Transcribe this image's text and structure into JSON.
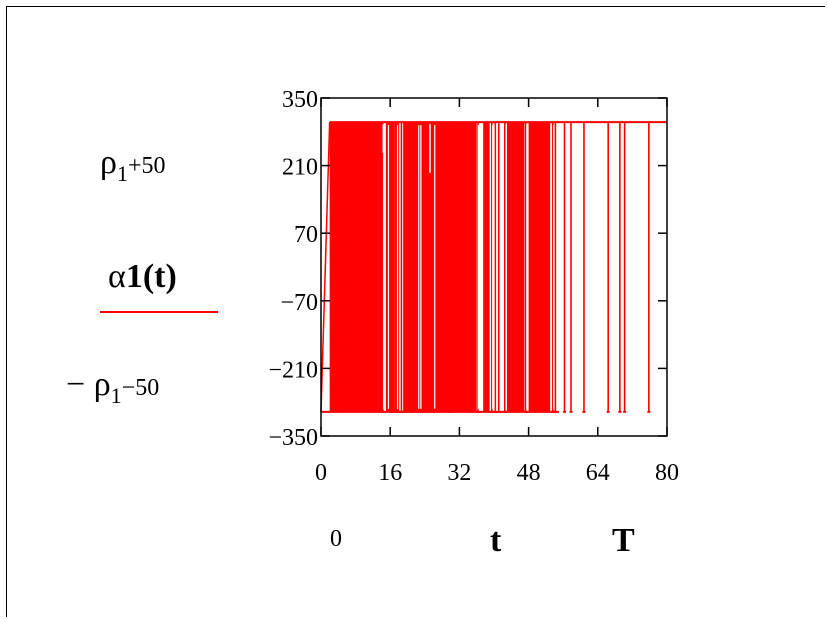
{
  "upper_expr": {
    "main": "ρ",
    "sub": "1",
    "suffix": "+50"
  },
  "lower_expr": {
    "prefix": "− ",
    "main": "ρ",
    "sub": "1",
    "suffix": "−50"
  },
  "legend": {
    "alpha": "α",
    "text": "1(t)"
  },
  "x_limits": {
    "lower": "0",
    "variable": "t",
    "upper": "T"
  },
  "colors": {
    "trace": "#ff0000",
    "axis": "#000000",
    "background": "#ffffff"
  },
  "chart_data": {
    "type": "line",
    "x_ticks": [
      "0",
      "16",
      "32",
      "48",
      "64",
      "80"
    ],
    "y_ticks": [
      "350",
      "210",
      "70",
      "−70",
      "−210",
      "−350"
    ],
    "xlim": [
      0,
      80
    ],
    "ylim": [
      -350,
      350
    ],
    "grid": false,
    "series": [
      {
        "color": "#ff0000",
        "low": -300,
        "high": 300,
        "x_start": 2,
        "x_end": 80,
        "dense_fill_ranges": [
          [
            2,
            14
          ],
          [
            15,
            17
          ],
          [
            19,
            36
          ],
          [
            37.5,
            39
          ],
          [
            43,
            47
          ],
          [
            48,
            53
          ]
        ],
        "spikes_down_from_high": [
          14.3,
          16.2,
          17.5,
          17.9,
          18.6,
          19.6,
          21,
          22.3,
          25.8,
          29.5,
          30.2,
          34.8,
          36.3,
          39.5,
          40.3,
          41.1,
          42.5,
          47.3,
          53.6,
          54.2,
          56.3,
          57.8,
          60.8,
          66.4,
          69.1,
          70.2,
          75.8
        ],
        "spikes_up_from_low": [
          14,
          17.2,
          24.2,
          24.9
        ],
        "partial_spikes": [
          {
            "x": 14.4,
            "top": 236
          },
          {
            "x": 25.2,
            "top": 195
          }
        ]
      }
    ]
  }
}
